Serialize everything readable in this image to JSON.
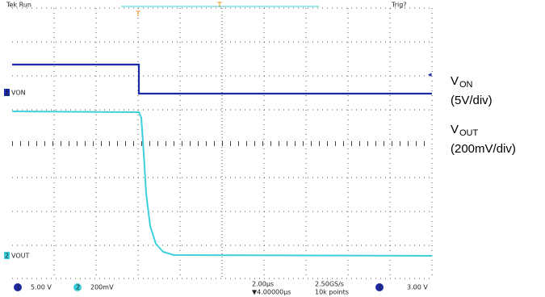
{
  "header": {
    "status": "Tek Run",
    "trigger": "Trig?"
  },
  "channels": [
    {
      "number": "1",
      "label": "VON",
      "scale": "5.00 V"
    },
    {
      "number": "2",
      "label": "VOUT",
      "scale": "200mV"
    }
  ],
  "timebase": {
    "scale": "2.00µs",
    "delay": "▼4.00000µs",
    "sample_rate": "2.50GS/s",
    "record": "10k points"
  },
  "trigger_level": "3.00 V",
  "legend": [
    {
      "name": "V",
      "sub": "ON",
      "scale": "(5V/div)"
    },
    {
      "name": "V",
      "sub": "OUT",
      "scale": "(200mV/div)"
    }
  ]
}
